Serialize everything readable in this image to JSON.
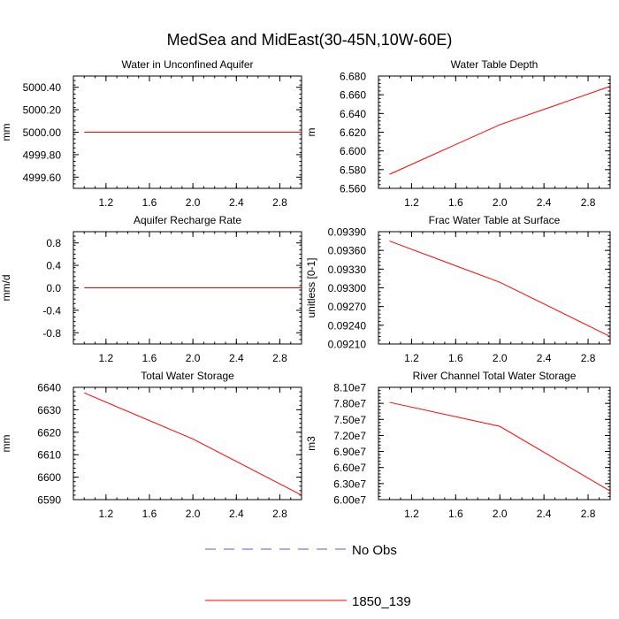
{
  "title": "MedSea and MidEast(30-45N,10W-60E)",
  "legend": [
    {
      "label": "No Obs",
      "color": "#5a5ac8",
      "dash": true
    },
    {
      "label": "1850_139",
      "color": "#ff0000",
      "dash": false
    }
  ],
  "chart_data": [
    {
      "type": "line",
      "title": "Water in Unconfined Aquifer",
      "ylabel": "mm",
      "xlim": [
        0.9,
        3.0
      ],
      "ylim": [
        4999.5,
        5000.5
      ],
      "xticks": [
        "1.2",
        "1.6",
        "2.0",
        "2.4",
        "2.8"
      ],
      "xtick_values": [
        1.2,
        1.6,
        2.0,
        2.4,
        2.8
      ],
      "yticks": [
        "4999.60",
        "4999.80",
        "5000.00",
        "5000.20",
        "5000.40"
      ],
      "ytick_values": [
        4999.6,
        4999.8,
        5000.0,
        5000.2,
        5000.4
      ],
      "series": [
        {
          "name": "1850_139",
          "x": [
            1,
            2,
            3
          ],
          "y": [
            5000.0,
            5000.0,
            5000.0
          ]
        }
      ]
    },
    {
      "type": "line",
      "title": "Water Table Depth",
      "ylabel": "m",
      "xlim": [
        0.9,
        3.0
      ],
      "ylim": [
        6.56,
        6.68
      ],
      "xticks": [
        "1.2",
        "1.6",
        "2.0",
        "2.4",
        "2.8"
      ],
      "xtick_values": [
        1.2,
        1.6,
        2.0,
        2.4,
        2.8
      ],
      "yticks": [
        "6.560",
        "6.580",
        "6.600",
        "6.620",
        "6.640",
        "6.660",
        "6.680"
      ],
      "ytick_values": [
        6.56,
        6.58,
        6.6,
        6.62,
        6.64,
        6.66,
        6.68
      ],
      "series": [
        {
          "name": "1850_139",
          "x": [
            1,
            2,
            3
          ],
          "y": [
            6.575,
            6.628,
            6.669
          ]
        }
      ]
    },
    {
      "type": "line",
      "title": "Aquifer Recharge Rate",
      "ylabel": "mm/d",
      "xlim": [
        0.9,
        3.0
      ],
      "ylim": [
        -1.0,
        1.0
      ],
      "xticks": [
        "1.2",
        "1.6",
        "2.0",
        "2.4",
        "2.8"
      ],
      "xtick_values": [
        1.2,
        1.6,
        2.0,
        2.4,
        2.8
      ],
      "yticks": [
        "-0.8",
        "-0.4",
        "0.0",
        "0.4",
        "0.8"
      ],
      "ytick_values": [
        -0.8,
        -0.4,
        0.0,
        0.4,
        0.8
      ],
      "series": [
        {
          "name": "1850_139",
          "x": [
            1,
            2,
            3
          ],
          "y": [
            0.0,
            0.0,
            0.0
          ]
        }
      ]
    },
    {
      "type": "line",
      "title": "Frac Water Table at Surface",
      "ylabel": "unitless [0-1]",
      "xlim": [
        0.9,
        3.0
      ],
      "ylim": [
        0.0921,
        0.0939
      ],
      "xticks": [
        "1.2",
        "1.6",
        "2.0",
        "2.4",
        "2.8"
      ],
      "xtick_values": [
        1.2,
        1.6,
        2.0,
        2.4,
        2.8
      ],
      "yticks": [
        "0.09210",
        "0.09240",
        "0.09270",
        "0.09300",
        "0.09330",
        "0.09360",
        "0.09390"
      ],
      "ytick_values": [
        0.0921,
        0.0924,
        0.0927,
        0.093,
        0.0933,
        0.0936,
        0.0939
      ],
      "series": [
        {
          "name": "1850_139",
          "x": [
            1,
            2,
            3
          ],
          "y": [
            0.09375,
            0.09309,
            0.09222
          ]
        }
      ]
    },
    {
      "type": "line",
      "title": "Total Water Storage",
      "ylabel": "mm",
      "xlim": [
        0.9,
        3.0
      ],
      "ylim": [
        6590,
        6640
      ],
      "xticks": [
        "1.2",
        "1.6",
        "2.0",
        "2.4",
        "2.8"
      ],
      "xtick_values": [
        1.2,
        1.6,
        2.0,
        2.4,
        2.8
      ],
      "yticks": [
        "6590",
        "6600",
        "6610",
        "6620",
        "6630",
        "6640"
      ],
      "ytick_values": [
        6590,
        6600,
        6610,
        6620,
        6630,
        6640
      ],
      "series": [
        {
          "name": "1850_139",
          "x": [
            1,
            2,
            3
          ],
          "y": [
            6637.5,
            6617.0,
            6592.0
          ]
        }
      ]
    },
    {
      "type": "line",
      "title": "River Channel Total Water Storage",
      "ylabel": "m3",
      "xlim": [
        0.9,
        3.0
      ],
      "ylim": [
        60000000,
        81000000
      ],
      "xticks": [
        "1.2",
        "1.6",
        "2.0",
        "2.4",
        "2.8"
      ],
      "xtick_values": [
        1.2,
        1.6,
        2.0,
        2.4,
        2.8
      ],
      "yticks": [
        "6.00e7",
        "6.30e7",
        "6.60e7",
        "6.90e7",
        "7.20e7",
        "7.50e7",
        "7.80e7",
        "8.10e7"
      ],
      "ytick_values": [
        60000000,
        63000000,
        66000000,
        69000000,
        72000000,
        75000000,
        78000000,
        81000000
      ],
      "series": [
        {
          "name": "1850_139",
          "x": [
            1,
            2,
            3
          ],
          "y": [
            78200000,
            73700000,
            61600000
          ]
        }
      ]
    }
  ]
}
